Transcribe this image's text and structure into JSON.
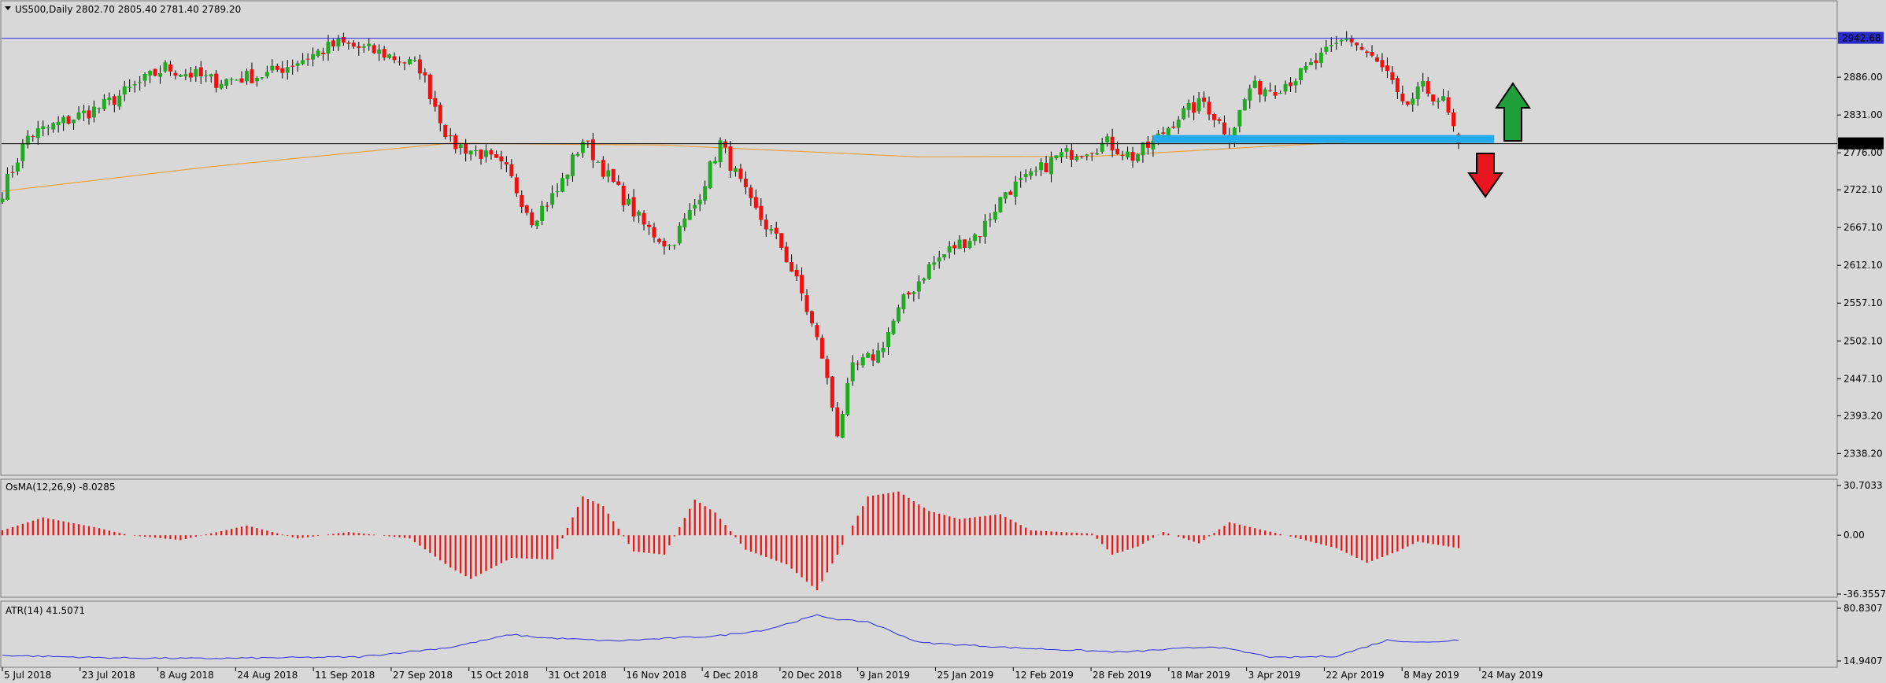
{
  "header": {
    "symbol_info": "US500,Daily  2802.70 2805.40 2781.40 2789.20"
  },
  "colors": {
    "background": "#d8d8d8",
    "bull": "#22aa22",
    "bear": "#ee1111",
    "ma": "#f0a040",
    "resistance_line": "#2a2aee",
    "support_zone": "#22aaee",
    "price_label_bg": "#000000",
    "resistance_label_bg": "#2a2acc",
    "osma": "#ee1111",
    "atr": "#2a2aee",
    "arrow_up": "#1f9f3a",
    "arrow_down": "#e8141e"
  },
  "chart_data": [
    {
      "type": "candlestick",
      "title": "US500,Daily  2802.70 2805.40 2781.40 2789.20",
      "y_ticks": [
        "2886.00",
        "2831.00",
        "2776.00",
        "2722.10",
        "2667.10",
        "2612.10",
        "2557.10",
        "2502.10",
        "2447.10",
        "2393.20",
        "2338.20"
      ],
      "ylim": [
        2326,
        2964
      ],
      "x_labels": [
        "5 Jul 2018",
        "23 Jul 2018",
        "8 Aug 2018",
        "24 Aug 2018",
        "11 Sep 2018",
        "27 Sep 2018",
        "15 Oct 2018",
        "31 Oct 2018",
        "16 Nov 2018",
        "4 Dec 2018",
        "20 Dec 2018",
        "9 Jan 2019",
        "25 Jan 2019",
        "12 Feb 2019",
        "28 Feb 2019",
        "18 Mar 2019",
        "3 Apr 2019",
        "22 Apr 2019",
        "8 May 2019",
        "24 May 2019"
      ],
      "anchors": [
        [
          0,
          2720
        ],
        [
          5,
          2800
        ],
        [
          20,
          2845
        ],
        [
          32,
          2900
        ],
        [
          42,
          2880
        ],
        [
          52,
          2890
        ],
        [
          66,
          2935
        ],
        [
          75,
          2920
        ],
        [
          82,
          2900
        ],
        [
          88,
          2790
        ],
        [
          94,
          2775
        ],
        [
          99,
          2750
        ],
        [
          104,
          2680
        ],
        [
          109,
          2720
        ],
        [
          114,
          2795
        ],
        [
          121,
          2720
        ],
        [
          126,
          2670
        ],
        [
          131,
          2640
        ],
        [
          136,
          2700
        ],
        [
          141,
          2790
        ],
        [
          147,
          2700
        ],
        [
          153,
          2640
        ],
        [
          157,
          2570
        ],
        [
          161,
          2480
        ],
        [
          164,
          2370
        ],
        [
          167,
          2460
        ],
        [
          172,
          2485
        ],
        [
          177,
          2560
        ],
        [
          182,
          2610
        ],
        [
          187,
          2640
        ],
        [
          192,
          2660
        ],
        [
          197,
          2720
        ],
        [
          202,
          2740
        ],
        [
          207,
          2770
        ],
        [
          212,
          2780
        ],
        [
          217,
          2790
        ],
        [
          222,
          2770
        ],
        [
          226,
          2790
        ],
        [
          231,
          2830
        ],
        [
          236,
          2850
        ],
        [
          241,
          2800
        ],
        [
          245,
          2870
        ],
        [
          250,
          2870
        ],
        [
          255,
          2890
        ],
        [
          260,
          2920
        ],
        [
          264,
          2945
        ],
        [
          268,
          2920
        ],
        [
          272,
          2890
        ],
        [
          275,
          2840
        ],
        [
          279,
          2870
        ],
        [
          283,
          2850
        ],
        [
          286,
          2789.2
        ]
      ],
      "last_candle": {
        "open": 2802.7,
        "high": 2805.4,
        "low": 2781.4,
        "close": 2789.2
      },
      "moving_average": [
        [
          0,
          2720
        ],
        [
          40,
          2755
        ],
        [
          88,
          2790
        ],
        [
          130,
          2787
        ],
        [
          180,
          2770
        ],
        [
          215,
          2771
        ],
        [
          250,
          2786
        ],
        [
          270,
          2793
        ],
        [
          286,
          2791
        ]
      ],
      "resistance_level": 2942.68,
      "resistance_label": "2942.68",
      "current_price": 2789.2,
      "current_price_label": "2789.20",
      "support_zone": {
        "from_bar": 226,
        "to_bar": 293,
        "price": 2796
      },
      "arrows": [
        {
          "direction": "up"
        },
        {
          "direction": "down"
        }
      ]
    },
    {
      "type": "bar",
      "title": "OsMA(12,26,9) -8.0285",
      "y_ticks": [
        "30.7033",
        "0.00",
        "-36.3557"
      ],
      "ylim": [
        -36.3557,
        30.7033
      ],
      "anchors": [
        [
          0,
          3
        ],
        [
          8,
          11
        ],
        [
          18,
          5
        ],
        [
          25,
          0
        ],
        [
          35,
          -3
        ],
        [
          48,
          6
        ],
        [
          58,
          -2
        ],
        [
          68,
          2
        ],
        [
          80,
          -2
        ],
        [
          88,
          -20
        ],
        [
          92,
          -27
        ],
        [
          100,
          -14
        ],
        [
          108,
          -15
        ],
        [
          114,
          24
        ],
        [
          118,
          18
        ],
        [
          124,
          -10
        ],
        [
          130,
          -12
        ],
        [
          136,
          22
        ],
        [
          140,
          14
        ],
        [
          146,
          -9
        ],
        [
          154,
          -18
        ],
        [
          160,
          -34
        ],
        [
          164,
          -12
        ],
        [
          170,
          24
        ],
        [
          176,
          27
        ],
        [
          182,
          15
        ],
        [
          188,
          10
        ],
        [
          196,
          13
        ],
        [
          202,
          3
        ],
        [
          214,
          1
        ],
        [
          218,
          -12
        ],
        [
          223,
          -7
        ],
        [
          228,
          2
        ],
        [
          235,
          -5
        ],
        [
          241,
          8
        ],
        [
          252,
          0
        ],
        [
          262,
          -8
        ],
        [
          268,
          -17
        ],
        [
          274,
          -10
        ],
        [
          278,
          -4
        ],
        [
          286,
          -8
        ]
      ]
    },
    {
      "type": "line",
      "title": "ATR(14) 41.5071",
      "y_ticks": [
        "80.8307",
        "14.9407"
      ],
      "ylim": [
        14.9407,
        80.8307
      ],
      "anchors": [
        [
          0,
          22
        ],
        [
          20,
          19
        ],
        [
          40,
          18
        ],
        [
          70,
          20
        ],
        [
          88,
          32
        ],
        [
          100,
          48
        ],
        [
          106,
          44
        ],
        [
          120,
          40
        ],
        [
          140,
          46
        ],
        [
          150,
          54
        ],
        [
          160,
          72
        ],
        [
          165,
          66
        ],
        [
          170,
          64
        ],
        [
          180,
          38
        ],
        [
          200,
          31
        ],
        [
          220,
          26
        ],
        [
          238,
          33
        ],
        [
          250,
          19
        ],
        [
          262,
          21
        ],
        [
          272,
          41
        ],
        [
          280,
          38
        ],
        [
          286,
          41.5
        ]
      ]
    }
  ]
}
